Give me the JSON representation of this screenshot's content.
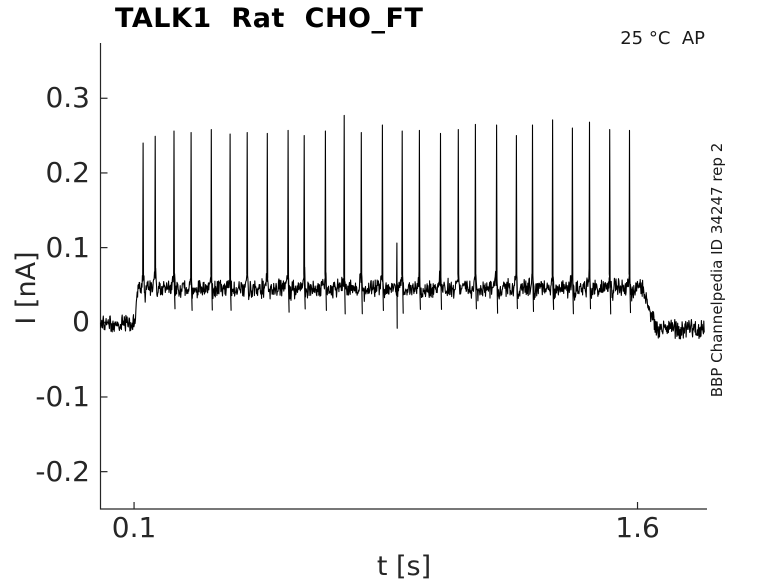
{
  "chart_data": {
    "type": "line",
    "title": "TALK1  Rat  CHO_FT",
    "xlabel": "t [s]",
    "ylabel": "I [nA]",
    "temperature_note": "25 °C  AP",
    "watermark": "BBP Channelpedia ID 34247 rep 2",
    "xlim": [
      0,
      1.807
    ],
    "ylim": [
      -0.25,
      0.374
    ],
    "xticks": [
      0.1,
      1.6
    ],
    "yticks": [
      -0.2,
      -0.1,
      0,
      0.1,
      0.2,
      0.3
    ],
    "grid": false,
    "legend": "none",
    "line_color": "#000000",
    "axis_color": "#262626",
    "trace": {
      "description": "voltage-clamp current trace: noisy baseline, step depolarization with repetitive spikes, return to baseline",
      "t_start": 0.0,
      "t_end": 1.8,
      "baseline_level": -0.002,
      "baseline_noise": 0.011,
      "step_on": 0.102,
      "step_off": 1.615,
      "plateau_level": 0.045,
      "plateau_noise": 0.011,
      "post_level": -0.009,
      "post_noise": 0.011,
      "spike_times": [
        0.127,
        0.163,
        0.219,
        0.27,
        0.33,
        0.386,
        0.437,
        0.497,
        0.559,
        0.607,
        0.67,
        0.726,
        0.777,
        0.84,
        0.899,
        0.95,
        1.013,
        1.066,
        1.117,
        1.18,
        1.239,
        1.287,
        1.347,
        1.406,
        1.457,
        1.517,
        1.576
      ],
      "spike_peaks": [
        0.24,
        0.249,
        0.256,
        0.254,
        0.258,
        0.252,
        0.254,
        0.253,
        0.257,
        0.25,
        0.256,
        0.277,
        0.254,
        0.264,
        0.256,
        0.257,
        0.253,
        0.258,
        0.265,
        0.264,
        0.25,
        0.264,
        0.271,
        0.26,
        0.268,
        0.258,
        0.257
      ],
      "artifact": {
        "t": 0.883,
        "peak": 0.106,
        "trough": -0.008
      }
    }
  }
}
